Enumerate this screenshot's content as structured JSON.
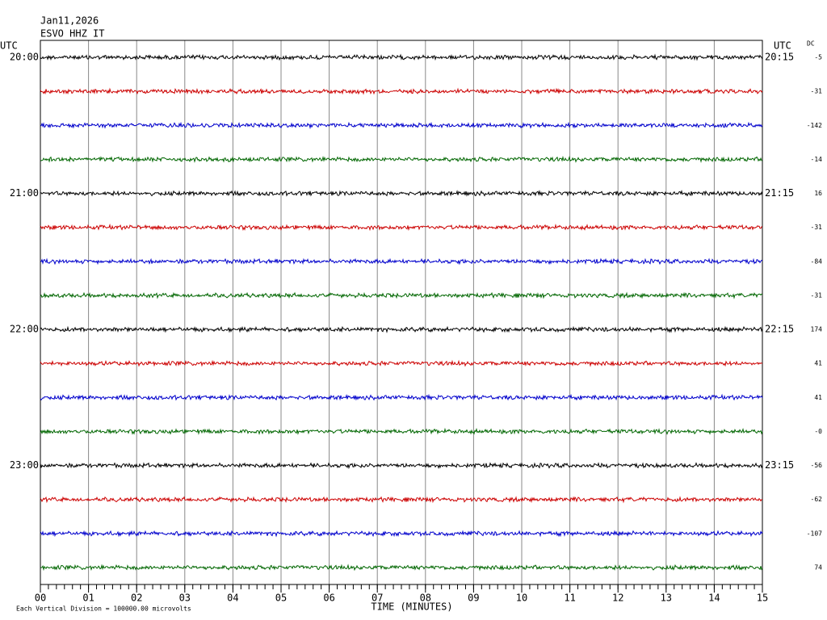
{
  "chart_data": {
    "type": "helicorder",
    "date": "Jan11,2026",
    "station": "ESVO HHZ IT",
    "left_label": "UTC",
    "right_label": "UTC",
    "dc_label": "DC",
    "xlabel": "TIME (MINUTES)",
    "footnote": "Each Vertical Division = 100000.00 microvolts",
    "xlim": [
      0,
      15
    ],
    "xticks": [
      {
        "value": 0,
        "label": "00"
      },
      {
        "value": 1,
        "label": "01"
      },
      {
        "value": 2,
        "label": "02"
      },
      {
        "value": 3,
        "label": "03"
      },
      {
        "value": 4,
        "label": "04"
      },
      {
        "value": 5,
        "label": "05"
      },
      {
        "value": 6,
        "label": "06"
      },
      {
        "value": 7,
        "label": "07"
      },
      {
        "value": 8,
        "label": "08"
      },
      {
        "value": 9,
        "label": "09"
      },
      {
        "value": 10,
        "label": "10"
      },
      {
        "value": 11,
        "label": "11"
      },
      {
        "value": 12,
        "label": "12"
      },
      {
        "value": 13,
        "label": "13"
      },
      {
        "value": 14,
        "label": "14"
      },
      {
        "value": 15,
        "label": "15"
      }
    ],
    "traces": [
      {
        "time_left": "20:00",
        "time_right": "20:15",
        "dc": -5,
        "color": "#000000"
      },
      {
        "time_left": null,
        "time_right": null,
        "dc": -31,
        "color": "#cc0000"
      },
      {
        "time_left": null,
        "time_right": null,
        "dc": -142,
        "color": "#0000cc"
      },
      {
        "time_left": null,
        "time_right": null,
        "dc": -14,
        "color": "#006600"
      },
      {
        "time_left": "21:00",
        "time_right": "21:15",
        "dc": 16,
        "color": "#000000"
      },
      {
        "time_left": null,
        "time_right": null,
        "dc": -31,
        "color": "#cc0000"
      },
      {
        "time_left": null,
        "time_right": null,
        "dc": -84,
        "color": "#0000cc"
      },
      {
        "time_left": null,
        "time_right": null,
        "dc": -31,
        "color": "#006600"
      },
      {
        "time_left": "22:00",
        "time_right": "22:15",
        "dc": 174,
        "color": "#000000"
      },
      {
        "time_left": null,
        "time_right": null,
        "dc": 41,
        "color": "#cc0000"
      },
      {
        "time_left": null,
        "time_right": null,
        "dc": 41,
        "color": "#0000cc"
      },
      {
        "time_left": null,
        "time_right": null,
        "dc": {
          "value": 0,
          "label": "-0"
        },
        "color": "#006600"
      },
      {
        "time_left": "23:00",
        "time_right": "23:15",
        "dc": -56,
        "color": "#000000"
      },
      {
        "time_left": null,
        "time_right": null,
        "dc": -62,
        "color": "#cc0000"
      },
      {
        "time_left": null,
        "time_right": null,
        "dc": -107,
        "color": "#0000cc"
      },
      {
        "time_left": null,
        "time_right": null,
        "dc": 74,
        "color": "#006600"
      }
    ]
  }
}
